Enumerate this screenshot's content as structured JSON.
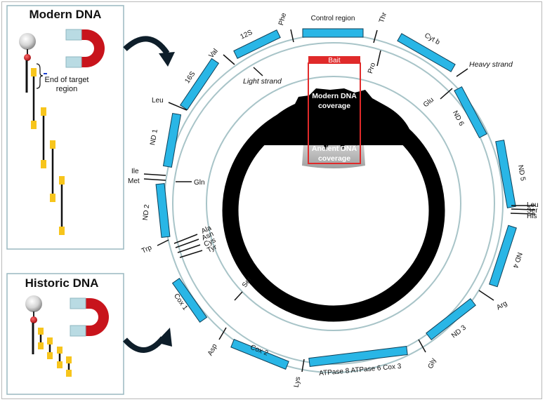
{
  "panels": {
    "modern": {
      "title": "Modern DNA",
      "annotation_line1": "End of target",
      "annotation_line2": "region"
    },
    "historic": {
      "title": "Historic DNA"
    }
  },
  "circle": {
    "bait_label": "Bait",
    "modern_coverage_line1": "Modern DNA",
    "modern_coverage_line2": "coverage",
    "ancient_coverage_line1": "Ancient DNA",
    "ancient_coverage_line2": "coverage",
    "heavy_strand": "Heavy strand",
    "light_strand": "Light strand"
  },
  "genes": {
    "control_region": "Control region",
    "cytb": "Cyt b",
    "nd6": "ND 6",
    "nd5": "ND 5",
    "nd4": "ND 4",
    "nd3": "ND 3",
    "atpase": "ATPase 8 ATPase 6 Cox 3",
    "cox2": "Cox 2",
    "cox1": "Cox 1",
    "nd2": "ND 2",
    "nd1": "ND 1",
    "s16": "16S",
    "s12": "12S"
  },
  "trnas": {
    "phe": "Phe",
    "thr": "Thr",
    "pro": "Pro",
    "glu": "Glu",
    "leu2": "Leu",
    "ser2": "Ser",
    "his": "His",
    "arg": "Arg",
    "gly": "Gly",
    "lys": "Lys",
    "asp": "Asp",
    "ser1": "Ser",
    "trp": "Trp",
    "ala": "Ala",
    "asn": "Asn",
    "cys": "Cys",
    "tyr": "Tyr",
    "ile": "Ile",
    "met": "Met",
    "gln": "Gln",
    "leu1": "Leu",
    "val": "Val"
  },
  "colors": {
    "gene_fill": "#29b6e6",
    "bait_red": "#e02a2a",
    "magnet_red": "#c8141c",
    "magnet_blue": "#b9dbe3",
    "probe_yellow": "#f7c51c",
    "ring_stroke": "#a8c4c8"
  }
}
